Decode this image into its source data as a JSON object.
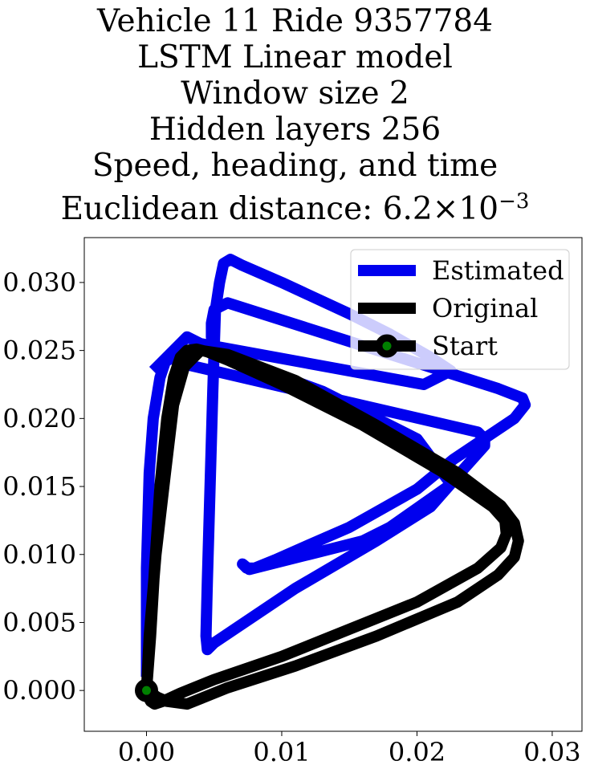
{
  "chart_data": {
    "type": "line",
    "title_lines": [
      "Vehicle 11 Ride 9357784",
      "LSTM Linear model",
      "Window size 2",
      "Hidden layers 256",
      "Speed, heading, and time"
    ],
    "title_metric": {
      "label": "Euclidean distance: ",
      "mantissa": "6.2",
      "times": "×",
      "base": "10",
      "exponent": "−3"
    },
    "xlabel": "",
    "ylabel": "",
    "xlim": [
      -0.0046,
      0.0322
    ],
    "ylim": [
      -0.003,
      0.0333
    ],
    "xticks": [
      0.0,
      0.01,
      0.02,
      0.03
    ],
    "xtick_labels": [
      "0.00",
      "0.01",
      "0.02",
      "0.03"
    ],
    "yticks": [
      0.0,
      0.005,
      0.01,
      0.015,
      0.02,
      0.025,
      0.03
    ],
    "ytick_labels": [
      "0.000",
      "0.005",
      "0.010",
      "0.015",
      "0.020",
      "0.025",
      "0.030"
    ],
    "grid": false,
    "legend_position": "top-right",
    "series": [
      {
        "name": "Estimated",
        "color": "#0000ee",
        "x": [
          0.0,
          0.0,
          0.0002,
          0.0005,
          0.001,
          0.0014,
          0.0018,
          0.0023,
          0.0028,
          0.0245,
          0.025,
          0.025,
          0.0223,
          0.018,
          0.016,
          0.012,
          0.01,
          0.008,
          0.0076,
          0.0071,
          0.0074,
          0.008,
          0.0095,
          0.012,
          0.015,
          0.02,
          0.0227,
          0.0272,
          0.028,
          0.0278,
          0.026,
          0.006,
          0.005,
          0.0048,
          0.0048,
          0.005,
          0.0055,
          0.0075,
          0.013,
          0.02,
          0.0215,
          0.0225,
          0.021,
          0.017,
          0.011,
          0.0065,
          0.005,
          0.0045,
          0.0044,
          0.0045,
          0.0047,
          0.0049,
          0.0051,
          0.0054,
          0.0057,
          0.0062,
          0.007,
          0.01,
          0.015,
          0.018,
          0.021,
          0.0225,
          0.0205,
          0.004,
          0.003,
          0.002,
          0.0005
        ],
        "y": [
          0.001,
          0.009,
          0.016,
          0.02,
          0.023,
          0.0242,
          0.0244,
          0.0243,
          0.024,
          0.019,
          0.0185,
          0.018,
          0.015,
          0.012,
          0.011,
          0.01,
          0.0095,
          0.009,
          0.0089,
          0.0093,
          0.009,
          0.009,
          0.0096,
          0.0107,
          0.012,
          0.0148,
          0.017,
          0.02,
          0.021,
          0.0215,
          0.0222,
          0.0285,
          0.028,
          0.027,
          0.026,
          0.025,
          0.0246,
          0.024,
          0.022,
          0.0185,
          0.0165,
          0.0152,
          0.0135,
          0.011,
          0.0075,
          0.0045,
          0.0035,
          0.003,
          0.004,
          0.008,
          0.015,
          0.022,
          0.028,
          0.03,
          0.0314,
          0.0317,
          0.0313,
          0.03,
          0.0277,
          0.0262,
          0.0245,
          0.0235,
          0.0225,
          0.0255,
          0.026,
          0.025,
          0.0235
        ]
      },
      {
        "name": "Original",
        "color": "#000000",
        "x": [
          0.0,
          0.0003,
          0.0006,
          0.001,
          0.0015,
          0.002,
          0.0025,
          0.003,
          0.0037,
          0.0045,
          0.006,
          0.01,
          0.016,
          0.022,
          0.0256,
          0.0265,
          0.0266,
          0.0262,
          0.0245,
          0.02,
          0.015,
          0.01,
          0.005,
          0.0025,
          0.0012,
          0.0006,
          0.0003,
          0.0001,
          0.0,
          0.0002,
          0.0007,
          0.0014,
          0.002,
          0.0028,
          0.004,
          0.006,
          0.011,
          0.017,
          0.023,
          0.0262,
          0.0272,
          0.0275,
          0.0272,
          0.026,
          0.023,
          0.017,
          0.011,
          0.006,
          0.003,
          0.0015,
          0.0008,
          0.0004
        ],
        "y": [
          0.0,
          0.004,
          0.009,
          0.015,
          0.02,
          0.023,
          0.0245,
          0.025,
          0.0251,
          0.0249,
          0.0243,
          0.0225,
          0.0195,
          0.016,
          0.0135,
          0.0125,
          0.0115,
          0.0105,
          0.009,
          0.0065,
          0.0045,
          0.0025,
          0.0008,
          -0.0002,
          -0.0008,
          -0.001,
          -0.0008,
          -0.0004,
          0.0,
          0.004,
          0.01,
          0.016,
          0.021,
          0.0238,
          0.025,
          0.0247,
          0.0228,
          0.0195,
          0.016,
          0.0136,
          0.0123,
          0.011,
          0.0098,
          0.0085,
          0.0065,
          0.004,
          0.0018,
          0.0002,
          -0.001,
          -0.0008,
          -0.0005,
          -0.0002
        ]
      }
    ],
    "start_marker": {
      "label": "Start",
      "x": 0.0,
      "y": 0.0,
      "fill": "#008000",
      "edge": "#000000"
    }
  }
}
